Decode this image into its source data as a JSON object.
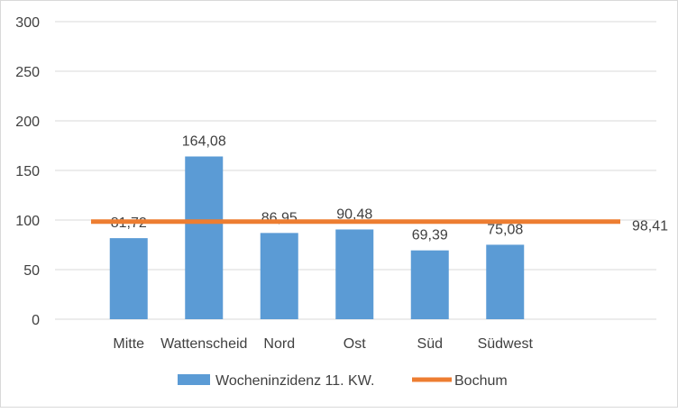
{
  "chart_data": {
    "type": "bar",
    "categories": [
      "Mitte",
      "Wattenscheid",
      "Nord",
      "Ost",
      "Süd",
      "Südwest"
    ],
    "series": [
      {
        "name": "Wocheninzidenz 11. KW.",
        "type": "bar",
        "values": [
          81.72,
          164.08,
          86.95,
          90.48,
          69.39,
          75.08
        ],
        "value_labels": [
          "81,72",
          "164,08",
          "86,95",
          "90,48",
          "69,39",
          "75,08"
        ],
        "color": "#5b9bd5"
      },
      {
        "name": "Bochum",
        "type": "line",
        "value": 98.41,
        "value_label": "98,41",
        "color": "#ed7d31"
      }
    ],
    "y_ticks": [
      0,
      50,
      100,
      150,
      200,
      250,
      300
    ],
    "ylim": [
      0,
      300
    ],
    "grid": true,
    "legend": "bottom",
    "gridline_color": "#d9d9d9",
    "text_color": "#404040"
  }
}
